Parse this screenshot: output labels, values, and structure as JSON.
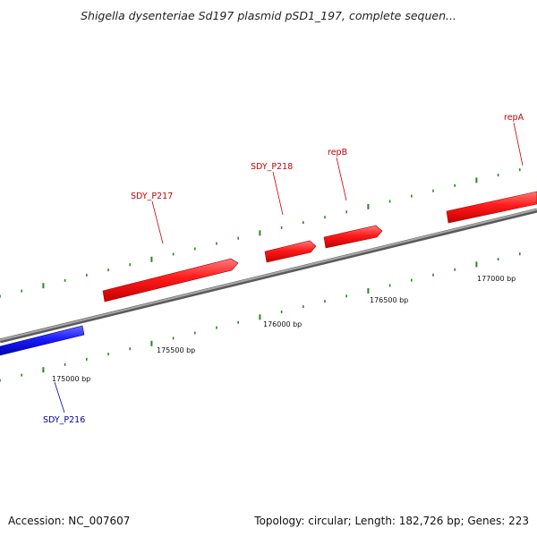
{
  "title": "Shigella dysenteriae Sd197 plasmid pSD1_197, complete sequen...",
  "accession_label": "Accession: NC_007607",
  "summary_label": "Topology: circular; Length: 182,726 bp; Genes: 223",
  "colors": {
    "forward_gene": "#e00000",
    "reverse_gene": "#0000dd",
    "backbone": "#808080",
    "tick": "#228b22",
    "forward_label": "#cc0000",
    "reverse_label": "#0000aa"
  },
  "ruler": {
    "labels": [
      "175000 bp",
      "175500 bp",
      "176000 bp",
      "176500 bp",
      "177000 bp"
    ]
  },
  "genes": [
    {
      "name": "SDY_P216",
      "strand": "reverse"
    },
    {
      "name": "SDY_P217",
      "strand": "forward"
    },
    {
      "name": "SDY_P218",
      "strand": "forward"
    },
    {
      "name": "repB",
      "strand": "forward"
    },
    {
      "name": "repA",
      "strand": "forward"
    }
  ]
}
